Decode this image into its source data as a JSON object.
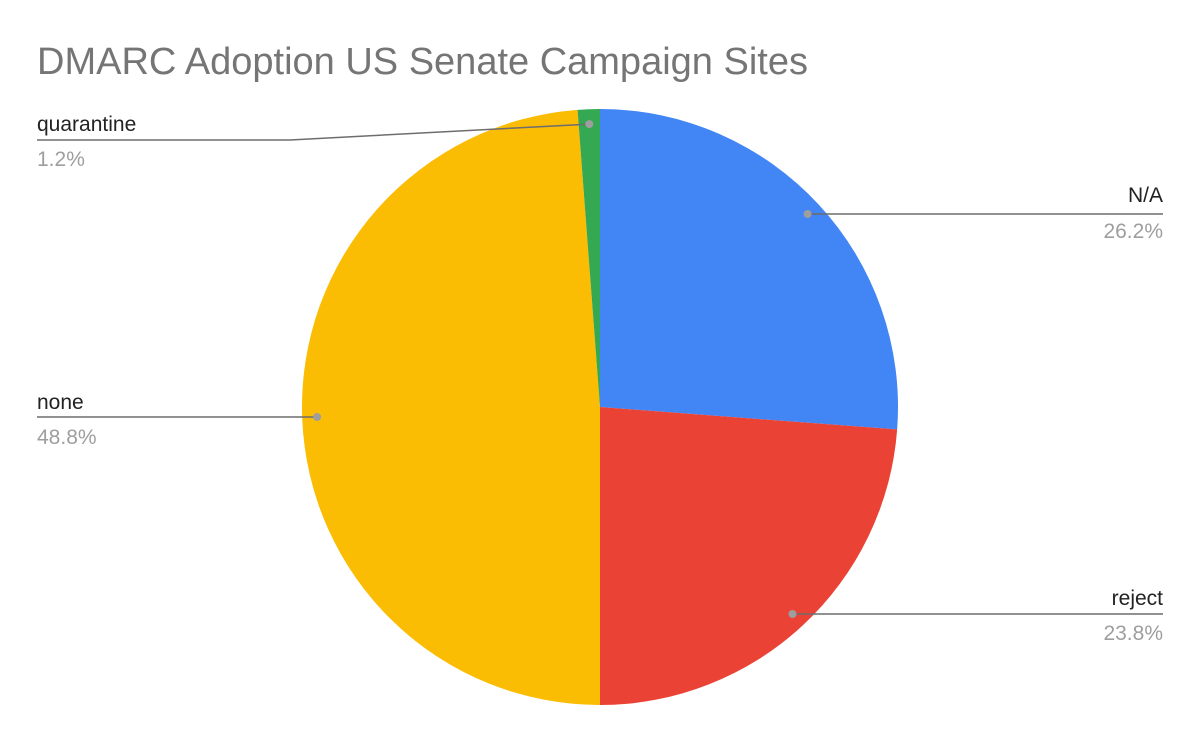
{
  "chart_data": {
    "type": "pie",
    "title": "DMARC Adoption US Senate Campaign Sites",
    "start_angle_deg": 0,
    "direction": "clockwise",
    "slices": [
      {
        "label": "N/A",
        "value": 26.2,
        "percent_label": "26.2%",
        "color": "#4285f4"
      },
      {
        "label": "reject",
        "value": 23.8,
        "percent_label": "23.8%",
        "color": "#ea4335"
      },
      {
        "label": "none",
        "value": 48.8,
        "percent_label": "48.8%",
        "color": "#fbbc04"
      },
      {
        "label": "quarantine",
        "value": 1.2,
        "percent_label": "1.2%",
        "color": "#34a853"
      }
    ]
  }
}
